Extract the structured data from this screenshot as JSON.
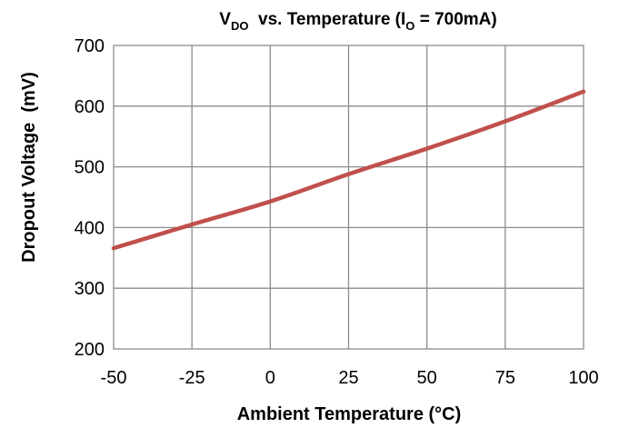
{
  "chart_data": {
    "type": "line",
    "title": {
      "p1": "V",
      "p1_sub": "DO",
      "p2": "  vs. Temperature (I",
      "p2_sub": "O",
      "p3": " = 700mA)"
    },
    "xlabel": "Ambient Temperature (°C)",
    "ylabel": "Dropout Voltage  (mV)",
    "xlim": [
      -50,
      100
    ],
    "ylim": [
      200,
      700
    ],
    "x_ticks": [
      -50,
      -25,
      0,
      25,
      50,
      75,
      100
    ],
    "y_ticks": [
      200,
      300,
      400,
      500,
      600,
      700
    ],
    "grid": true,
    "series": [
      {
        "color": "#c0504d",
        "x": [
          -50,
          -25,
          0,
          25,
          50,
          75,
          100
        ],
        "y": [
          366,
          405,
          443,
          488,
          530,
          575,
          624
        ]
      }
    ]
  }
}
